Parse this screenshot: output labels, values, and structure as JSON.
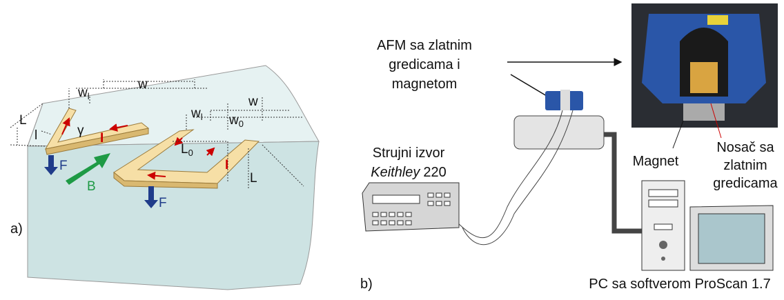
{
  "panel_a": {
    "tag": "a)",
    "labels": [
      {
        "text": "w"
      },
      {
        "text": "w",
        "sub": "l"
      },
      {
        "text": "L"
      },
      {
        "text": "l"
      },
      {
        "text": "γ"
      },
      {
        "text": "I"
      },
      {
        "text": "w"
      },
      {
        "text": "w",
        "sub": "l"
      },
      {
        "text": "w",
        "sub": "0"
      },
      {
        "text": "L",
        "sub": "0"
      },
      {
        "text": "I"
      },
      {
        "text": "F"
      },
      {
        "text": "B"
      },
      {
        "text": "F"
      },
      {
        "text": "L"
      }
    ]
  },
  "panel_b": {
    "tag": "b)",
    "afm_label": [
      "AFM sa zlatnim",
      "gredicama i",
      "magnetom"
    ],
    "source_label": {
      "line1": "Strujni izvor",
      "brand": "Keithley",
      "model": "220"
    },
    "magnet_label": "Magnet",
    "holder_label": [
      "Nosač sa",
      "zlatnim",
      "gredicama"
    ],
    "pc_label": "PC sa softverom ProScan 1.7"
  }
}
